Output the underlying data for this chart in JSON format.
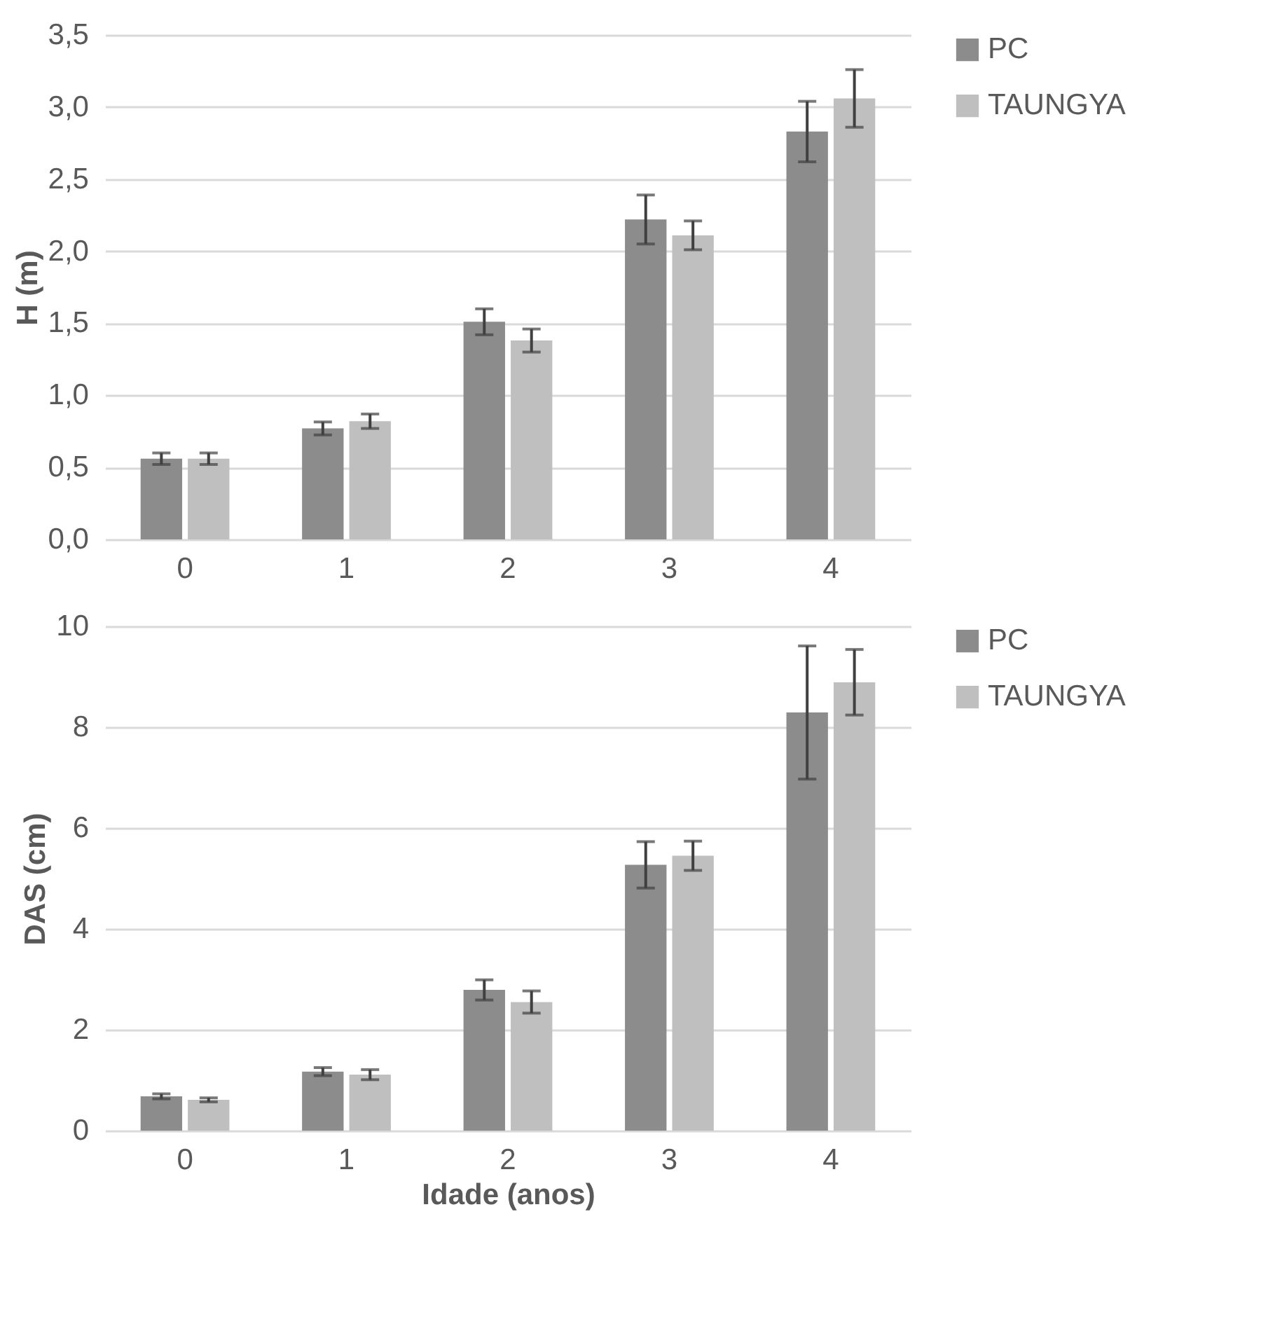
{
  "chart_data": [
    {
      "type": "bar",
      "ylabel": "H (m)",
      "categories": [
        "0",
        "1",
        "2",
        "3",
        "4"
      ],
      "ylim": [
        0,
        3.5
      ],
      "yticks": [
        {
          "value": 0,
          "label": "0,0"
        },
        {
          "value": 0.5,
          "label": "0,5"
        },
        {
          "value": 1,
          "label": "1,0"
        },
        {
          "value": 1.5,
          "label": "1,5"
        },
        {
          "value": 2,
          "label": "2,0"
        },
        {
          "value": 2.5,
          "label": "2,5"
        },
        {
          "value": 3,
          "label": "3,0"
        },
        {
          "value": 3.5,
          "label": "3,5"
        }
      ],
      "grid": "y",
      "legend": "right",
      "series": [
        {
          "name": "PC",
          "color": "#8c8c8c",
          "values": [
            0.56,
            0.77,
            1.51,
            2.22,
            2.83
          ],
          "errors": [
            0.04,
            0.045,
            0.09,
            0.17,
            0.21
          ]
        },
        {
          "name": "TAUNGYA",
          "color": "#bfbfbf",
          "values": [
            0.56,
            0.82,
            1.38,
            2.11,
            3.06
          ],
          "errors": [
            0.04,
            0.05,
            0.08,
            0.1,
            0.2
          ]
        }
      ]
    },
    {
      "type": "bar",
      "ylabel": "DAS (cm)",
      "xlabel": "Idade (anos)",
      "categories": [
        "0",
        "1",
        "2",
        "3",
        "4"
      ],
      "ylim": [
        0,
        10
      ],
      "yticks": [
        0,
        2,
        4,
        6,
        8,
        10
      ],
      "grid": "y",
      "legend": "right",
      "series": [
        {
          "name": "PC",
          "color": "#8c8c8c",
          "values": [
            0.68,
            1.17,
            2.79,
            5.27,
            8.29
          ],
          "errors": [
            0.05,
            0.08,
            0.2,
            0.46,
            1.32
          ]
        },
        {
          "name": "TAUNGYA",
          "color": "#bfbfbf",
          "values": [
            0.61,
            1.11,
            2.55,
            5.45,
            8.89
          ],
          "errors": [
            0.04,
            0.1,
            0.22,
            0.29,
            0.65
          ]
        }
      ]
    }
  ]
}
